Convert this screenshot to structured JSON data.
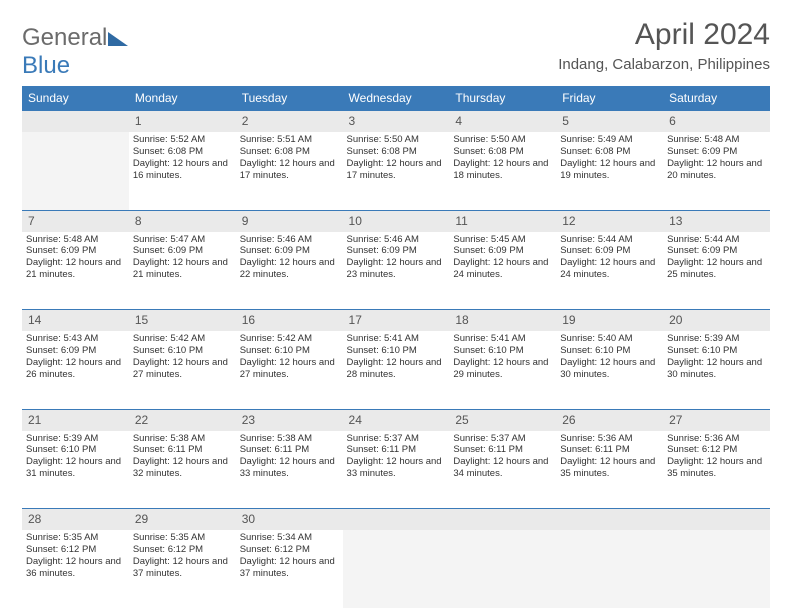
{
  "logo": {
    "part1": "General",
    "part2": "Blue"
  },
  "title": "April 2024",
  "location": "Indang, Calabarzon, Philippines",
  "colors": {
    "header_bg": "#3a7ab8",
    "header_fg": "#ffffff",
    "daynum_bg": "#eaeaea",
    "row_border": "#3a7ab8",
    "text": "#333333",
    "logo_gray": "#6b6b6b",
    "logo_blue": "#3a7ab8"
  },
  "weekdays": [
    "Sunday",
    "Monday",
    "Tuesday",
    "Wednesday",
    "Thursday",
    "Friday",
    "Saturday"
  ],
  "weeks": [
    [
      null,
      {
        "n": "1",
        "sr": "5:52 AM",
        "ss": "6:08 PM",
        "dl": "12 hours and 16 minutes."
      },
      {
        "n": "2",
        "sr": "5:51 AM",
        "ss": "6:08 PM",
        "dl": "12 hours and 17 minutes."
      },
      {
        "n": "3",
        "sr": "5:50 AM",
        "ss": "6:08 PM",
        "dl": "12 hours and 17 minutes."
      },
      {
        "n": "4",
        "sr": "5:50 AM",
        "ss": "6:08 PM",
        "dl": "12 hours and 18 minutes."
      },
      {
        "n": "5",
        "sr": "5:49 AM",
        "ss": "6:08 PM",
        "dl": "12 hours and 19 minutes."
      },
      {
        "n": "6",
        "sr": "5:48 AM",
        "ss": "6:09 PM",
        "dl": "12 hours and 20 minutes."
      }
    ],
    [
      {
        "n": "7",
        "sr": "5:48 AM",
        "ss": "6:09 PM",
        "dl": "12 hours and 21 minutes."
      },
      {
        "n": "8",
        "sr": "5:47 AM",
        "ss": "6:09 PM",
        "dl": "12 hours and 21 minutes."
      },
      {
        "n": "9",
        "sr": "5:46 AM",
        "ss": "6:09 PM",
        "dl": "12 hours and 22 minutes."
      },
      {
        "n": "10",
        "sr": "5:46 AM",
        "ss": "6:09 PM",
        "dl": "12 hours and 23 minutes."
      },
      {
        "n": "11",
        "sr": "5:45 AM",
        "ss": "6:09 PM",
        "dl": "12 hours and 24 minutes."
      },
      {
        "n": "12",
        "sr": "5:44 AM",
        "ss": "6:09 PM",
        "dl": "12 hours and 24 minutes."
      },
      {
        "n": "13",
        "sr": "5:44 AM",
        "ss": "6:09 PM",
        "dl": "12 hours and 25 minutes."
      }
    ],
    [
      {
        "n": "14",
        "sr": "5:43 AM",
        "ss": "6:09 PM",
        "dl": "12 hours and 26 minutes."
      },
      {
        "n": "15",
        "sr": "5:42 AM",
        "ss": "6:10 PM",
        "dl": "12 hours and 27 minutes."
      },
      {
        "n": "16",
        "sr": "5:42 AM",
        "ss": "6:10 PM",
        "dl": "12 hours and 27 minutes."
      },
      {
        "n": "17",
        "sr": "5:41 AM",
        "ss": "6:10 PM",
        "dl": "12 hours and 28 minutes."
      },
      {
        "n": "18",
        "sr": "5:41 AM",
        "ss": "6:10 PM",
        "dl": "12 hours and 29 minutes."
      },
      {
        "n": "19",
        "sr": "5:40 AM",
        "ss": "6:10 PM",
        "dl": "12 hours and 30 minutes."
      },
      {
        "n": "20",
        "sr": "5:39 AM",
        "ss": "6:10 PM",
        "dl": "12 hours and 30 minutes."
      }
    ],
    [
      {
        "n": "21",
        "sr": "5:39 AM",
        "ss": "6:10 PM",
        "dl": "12 hours and 31 minutes."
      },
      {
        "n": "22",
        "sr": "5:38 AM",
        "ss": "6:11 PM",
        "dl": "12 hours and 32 minutes."
      },
      {
        "n": "23",
        "sr": "5:38 AM",
        "ss": "6:11 PM",
        "dl": "12 hours and 33 minutes."
      },
      {
        "n": "24",
        "sr": "5:37 AM",
        "ss": "6:11 PM",
        "dl": "12 hours and 33 minutes."
      },
      {
        "n": "25",
        "sr": "5:37 AM",
        "ss": "6:11 PM",
        "dl": "12 hours and 34 minutes."
      },
      {
        "n": "26",
        "sr": "5:36 AM",
        "ss": "6:11 PM",
        "dl": "12 hours and 35 minutes."
      },
      {
        "n": "27",
        "sr": "5:36 AM",
        "ss": "6:12 PM",
        "dl": "12 hours and 35 minutes."
      }
    ],
    [
      {
        "n": "28",
        "sr": "5:35 AM",
        "ss": "6:12 PM",
        "dl": "12 hours and 36 minutes."
      },
      {
        "n": "29",
        "sr": "5:35 AM",
        "ss": "6:12 PM",
        "dl": "12 hours and 37 minutes."
      },
      {
        "n": "30",
        "sr": "5:34 AM",
        "ss": "6:12 PM",
        "dl": "12 hours and 37 minutes."
      },
      null,
      null,
      null,
      null
    ]
  ],
  "labels": {
    "sunrise": "Sunrise: ",
    "sunset": "Sunset: ",
    "daylight": "Daylight: "
  }
}
